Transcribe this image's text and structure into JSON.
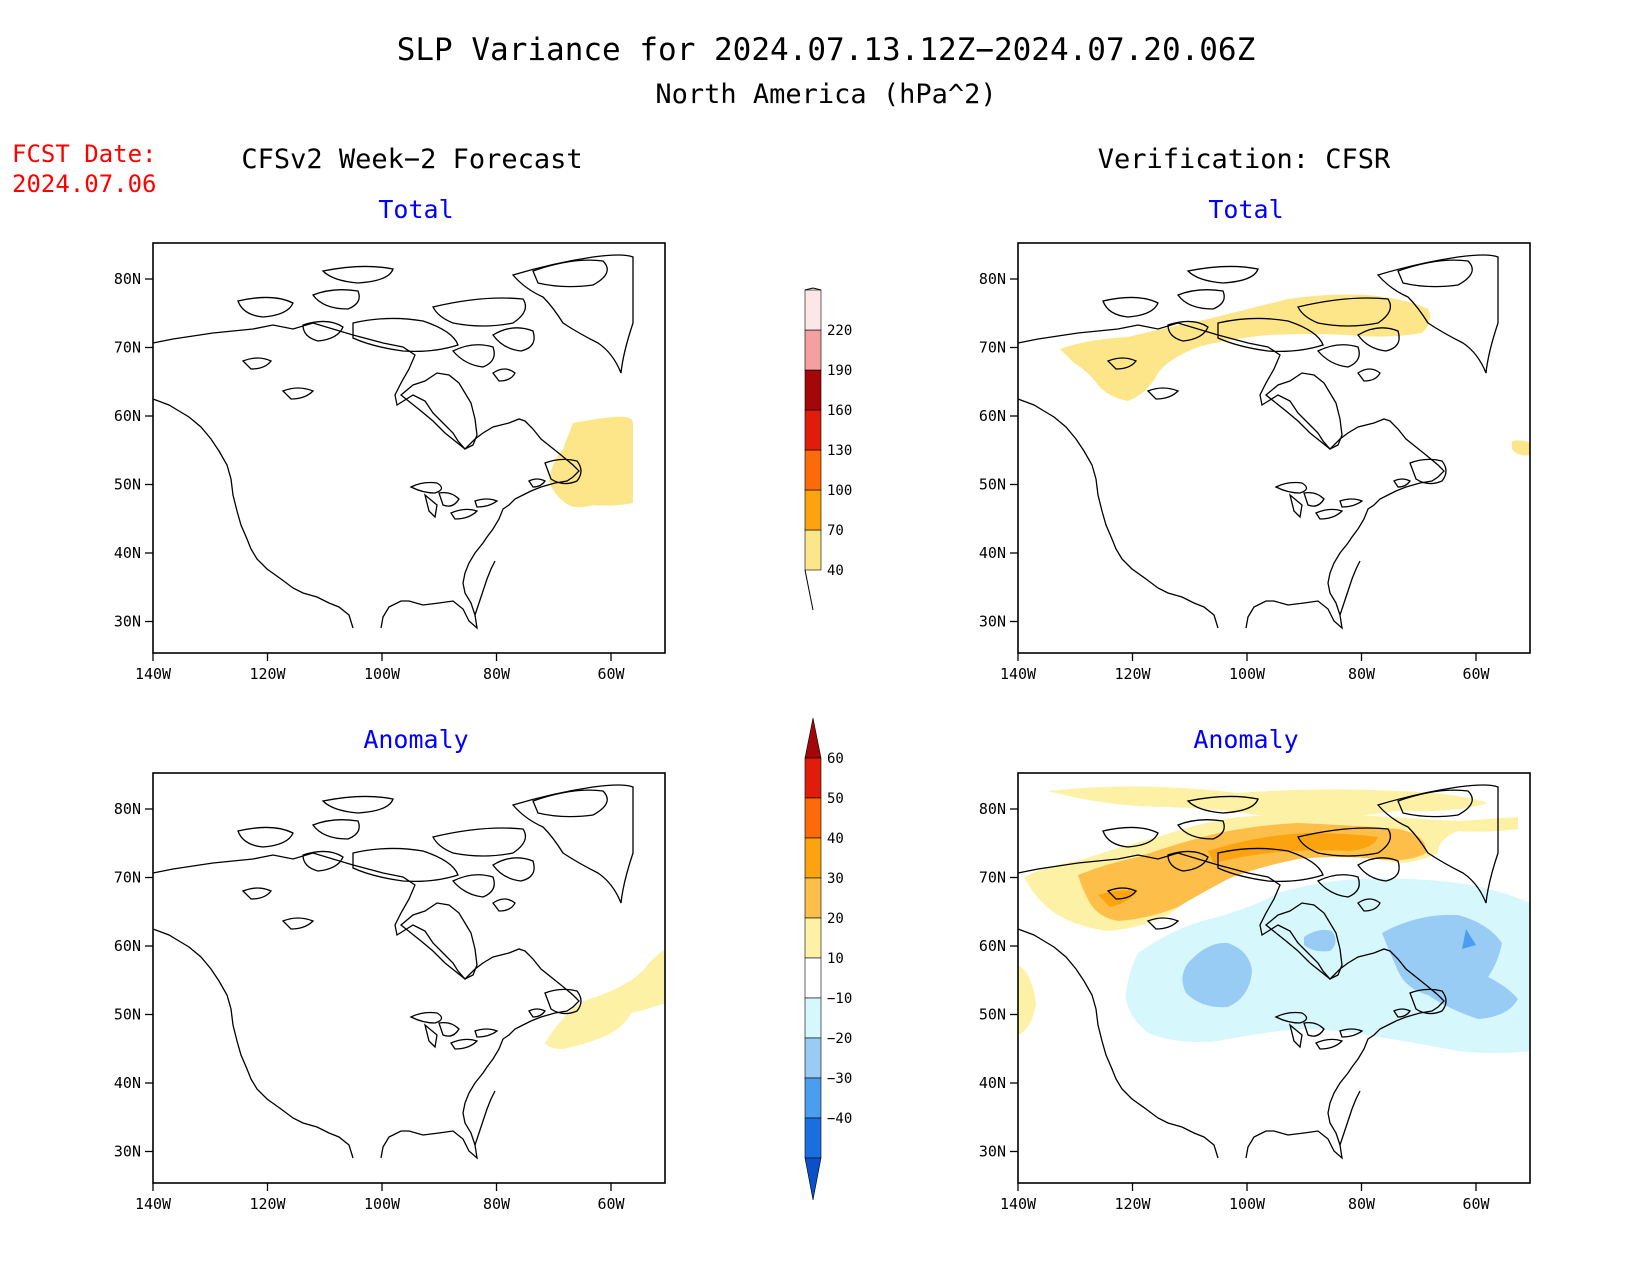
{
  "title": "SLP Variance for 2024.07.13.12Z−2024.07.20.06Z",
  "subtitle": "North America (hPa^2)",
  "fcst_date_label": "FCST Date:",
  "fcst_date_value": "2024.07.06",
  "left_column_title": "CFSv2 Week−2 Forecast",
  "right_column_title": "Verification: CFSR",
  "panel_titles": {
    "total": "Total",
    "anomaly": "Anomaly"
  },
  "x_ticks": [
    "140W",
    "120W",
    "100W",
    "80W",
    "60W"
  ],
  "y_ticks": [
    "80N",
    "70N",
    "60N",
    "50N",
    "40N",
    "30N"
  ],
  "total_colorbar": {
    "labels": [
      "40",
      "70",
      "100",
      "130",
      "160",
      "190",
      "220"
    ],
    "colors": [
      "#fde68a",
      "#fca40f",
      "#fd6a09",
      "#e01c0a",
      "#a30707",
      "#f4a0a0",
      "#fde6e6"
    ]
  },
  "anomaly_colorbar": {
    "labels": [
      "60",
      "50",
      "40",
      "30",
      "20",
      "10",
      "−10",
      "−20",
      "−30",
      "−40"
    ],
    "colors": [
      "#a30707",
      "#e01c0a",
      "#fd6a09",
      "#fca40f",
      "#fdbf4a",
      "#fdf1a5",
      "#ffffff",
      "#d6f7fc",
      "#98ccf5",
      "#4a9ef0",
      "#1a6fe0",
      "#0a50c8"
    ]
  }
}
